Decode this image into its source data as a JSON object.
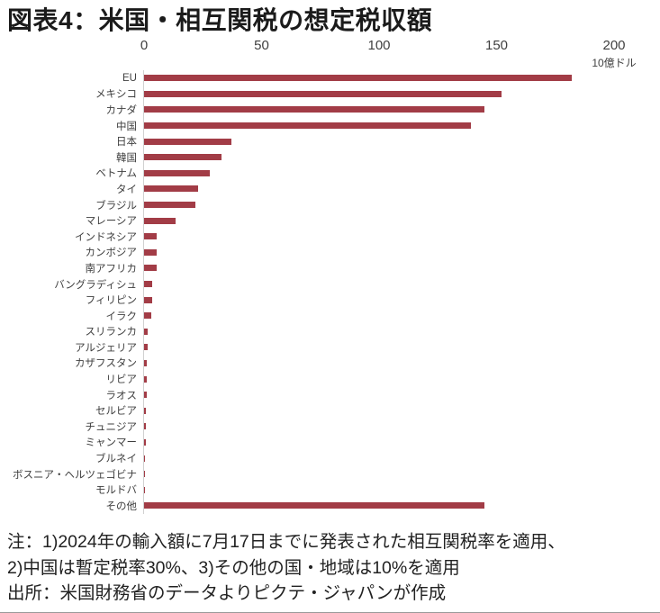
{
  "chart_data": {
    "type": "bar",
    "orientation": "horizontal",
    "title": "図表4：米国・相互関税の想定税収額",
    "unit": "10億ドル",
    "xlim": [
      0,
      200
    ],
    "x_ticks": [
      0,
      50,
      100,
      150,
      200
    ],
    "grid": false,
    "legend": false,
    "bar_color": "#A23C46",
    "categories": [
      "EU",
      "メキシコ",
      "カナダ",
      "中国",
      "日本",
      "韓国",
      "ベトナム",
      "タイ",
      "ブラジル",
      "マレーシア",
      "インドネシア",
      "カンボジア",
      "南アフリカ",
      "バングラディシュ",
      "フィリピン",
      "イラク",
      "スリランカ",
      "アルジェリア",
      "カザフスタン",
      "リビア",
      "ラオス",
      "セルビア",
      "チュニジア",
      "ミャンマー",
      "ブルネイ",
      "ボスニア・ヘルツェゴビナ",
      "モルドバ",
      "その他"
    ],
    "values": [
      182,
      152,
      145,
      139,
      37,
      33,
      28,
      23,
      22,
      13.5,
      5.5,
      5.2,
      5.2,
      3.5,
      3.3,
      3.2,
      1.5,
      1.5,
      1.2,
      1.2,
      1.0,
      0.8,
      0.7,
      0.6,
      0.5,
      0.4,
      0.3,
      145
    ]
  },
  "colors": {
    "bar": "#A23C46",
    "axis_line": "#d0d0d0",
    "text": "#3e3e3e"
  },
  "footer": {
    "note_line1": "注：1)2024年の輸入額に7月17日までに発表された相互関税率を適用、",
    "note_line2": "2)中国は暫定税率30%、3)その他の国・地域は10%を適用",
    "source_line": "出所：米国財務省のデータよりピクテ・ジャパンが作成"
  }
}
